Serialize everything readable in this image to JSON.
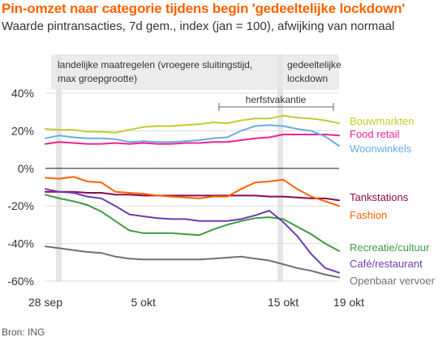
{
  "title": "Pin-omzet naar categorie tijdens begin 'gedeeltelijke lockdown'",
  "subtitle": "Waarde pintransacties, 7d gem., index (jan = 100), afwijking van normaal",
  "source": "Bron: ING",
  "chart_data": {
    "type": "line",
    "x_unit": "dag",
    "x": [
      "28 sep",
      "29 sep",
      "30 sep",
      "1 okt",
      "2 okt",
      "3 okt",
      "4 okt",
      "5 okt",
      "6 okt",
      "7 okt",
      "8 okt",
      "9 okt",
      "10 okt",
      "11 okt",
      "12 okt",
      "13 okt",
      "14 okt",
      "15 okt",
      "16 okt",
      "17 okt",
      "18 okt",
      "19 okt"
    ],
    "x_ticks": [
      "28 sep",
      "5 okt",
      "15 okt",
      "19 okt"
    ],
    "y_ticks": [
      "40%",
      "20%",
      "0%",
      "-20%",
      "-40%",
      "-60%"
    ],
    "ylim": [
      -60,
      40
    ],
    "grid": "horizontal",
    "zero_line": true,
    "vertical_markers": [
      "28 sep",
      "15 okt"
    ],
    "annotations": {
      "phase1": [
        "landelijke maatregelen (vroegere sluitingstijd,",
        "max groepgrootte)"
      ],
      "phase2": [
        "gedeeltelijke",
        "lockdown"
      ],
      "holiday": "herfstvakantie"
    },
    "series": [
      {
        "name": "Bouwmarkten",
        "color": "#c3cc30",
        "values": [
          21,
          20.5,
          20.5,
          19.5,
          19.5,
          19,
          20.5,
          22,
          22.5,
          22.5,
          23,
          23.5,
          24.5,
          24,
          25.5,
          26.5,
          26.5,
          28,
          27,
          26.5,
          25.5,
          24
        ]
      },
      {
        "name": "Food retail",
        "color": "#f0238f",
        "values": [
          13,
          14,
          13.5,
          13,
          13,
          13.5,
          13,
          13.5,
          13,
          13,
          13.5,
          13.5,
          14,
          14,
          15,
          16,
          16.5,
          18,
          18,
          18,
          18,
          17.5
        ]
      },
      {
        "name": "Woonwinkels",
        "color": "#6aaddf",
        "values": [
          16,
          17.5,
          16.5,
          16,
          16,
          15.5,
          14,
          14.5,
          14,
          14,
          14.5,
          15,
          16,
          16.5,
          20,
          22.5,
          23,
          22.5,
          21,
          20,
          17,
          12
        ]
      },
      {
        "name": "Tankstations",
        "color": "#8b0a4f",
        "values": [
          -12.5,
          -12.5,
          -12.5,
          -13,
          -13,
          -14,
          -14,
          -14.5,
          -14.5,
          -14.5,
          -14.5,
          -14.5,
          -14.5,
          -14.5,
          -14.5,
          -14.5,
          -15,
          -15,
          -15.5,
          -16,
          -16,
          -17
        ]
      },
      {
        "name": "Fashion",
        "color": "#ff6200",
        "values": [
          -5,
          -5.5,
          -4.5,
          -7,
          -7.5,
          -12.5,
          -13,
          -13.5,
          -14.5,
          -15,
          -15.5,
          -16,
          -15,
          -15,
          -11,
          -7.5,
          -7,
          -6,
          -11,
          -15,
          -17.5,
          -20
        ]
      },
      {
        "name": "Recreatie/cultuur",
        "color": "#3d9c3f",
        "values": [
          -14,
          -16,
          -17.5,
          -19.5,
          -23,
          -28,
          -33,
          -34.5,
          -34.5,
          -34.5,
          -35,
          -35.5,
          -32.5,
          -30,
          -28,
          -26.5,
          -26,
          -27,
          -31,
          -35,
          -40,
          -44
        ]
      },
      {
        "name": "Café/restaurant",
        "color": "#6a3cb3",
        "values": [
          -11,
          -12.5,
          -13,
          -15,
          -16,
          -20,
          -24.5,
          -25.5,
          -26.5,
          -27,
          -27,
          -28,
          -28,
          -28,
          -27,
          -25,
          -22.5,
          -28.5,
          -36,
          -45.5,
          -53,
          -55.5
        ]
      },
      {
        "name": "Openbaar vervoer",
        "color": "#707070",
        "values": [
          -41.5,
          -42.5,
          -43.5,
          -44.5,
          -45,
          -47,
          -48,
          -48.5,
          -48.5,
          -48.5,
          -48.5,
          -48.5,
          -48,
          -47.5,
          -47,
          -48,
          -49,
          -51,
          -53,
          -54.5,
          -56.5,
          -58
        ]
      }
    ]
  }
}
